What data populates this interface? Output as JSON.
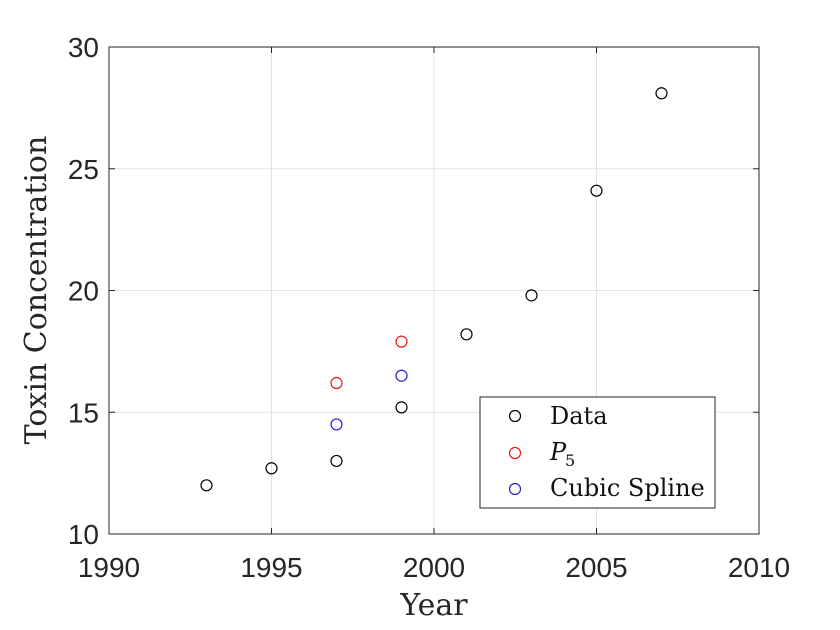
{
  "chart_data": {
    "type": "scatter",
    "xlabel": "Year",
    "ylabel": "Toxin Concentration",
    "xlim": [
      1990,
      2010
    ],
    "ylim": [
      10,
      30
    ],
    "xticks": [
      1990,
      1995,
      2000,
      2005,
      2010
    ],
    "yticks": [
      10,
      15,
      20,
      25,
      30
    ],
    "grid": true,
    "legend_position": "bottom-right",
    "series": [
      {
        "name": "Data",
        "color": "#000000",
        "marker": "open-circle",
        "x": [
          1993,
          1995,
          1997,
          1999,
          2001,
          2003,
          2005,
          2007
        ],
        "y": [
          12.0,
          12.7,
          13.0,
          15.2,
          18.2,
          19.8,
          24.1,
          28.1
        ]
      },
      {
        "name": "P",
        "name_subscript": "5",
        "color": "#e8191b",
        "marker": "open-circle",
        "x": [
          1997,
          1999
        ],
        "y": [
          16.2,
          17.9
        ]
      },
      {
        "name": "Cubic Spline",
        "color": "#1f1fd0",
        "marker": "open-circle",
        "x": [
          1997,
          1999
        ],
        "y": [
          14.5,
          16.5
        ]
      }
    ]
  }
}
